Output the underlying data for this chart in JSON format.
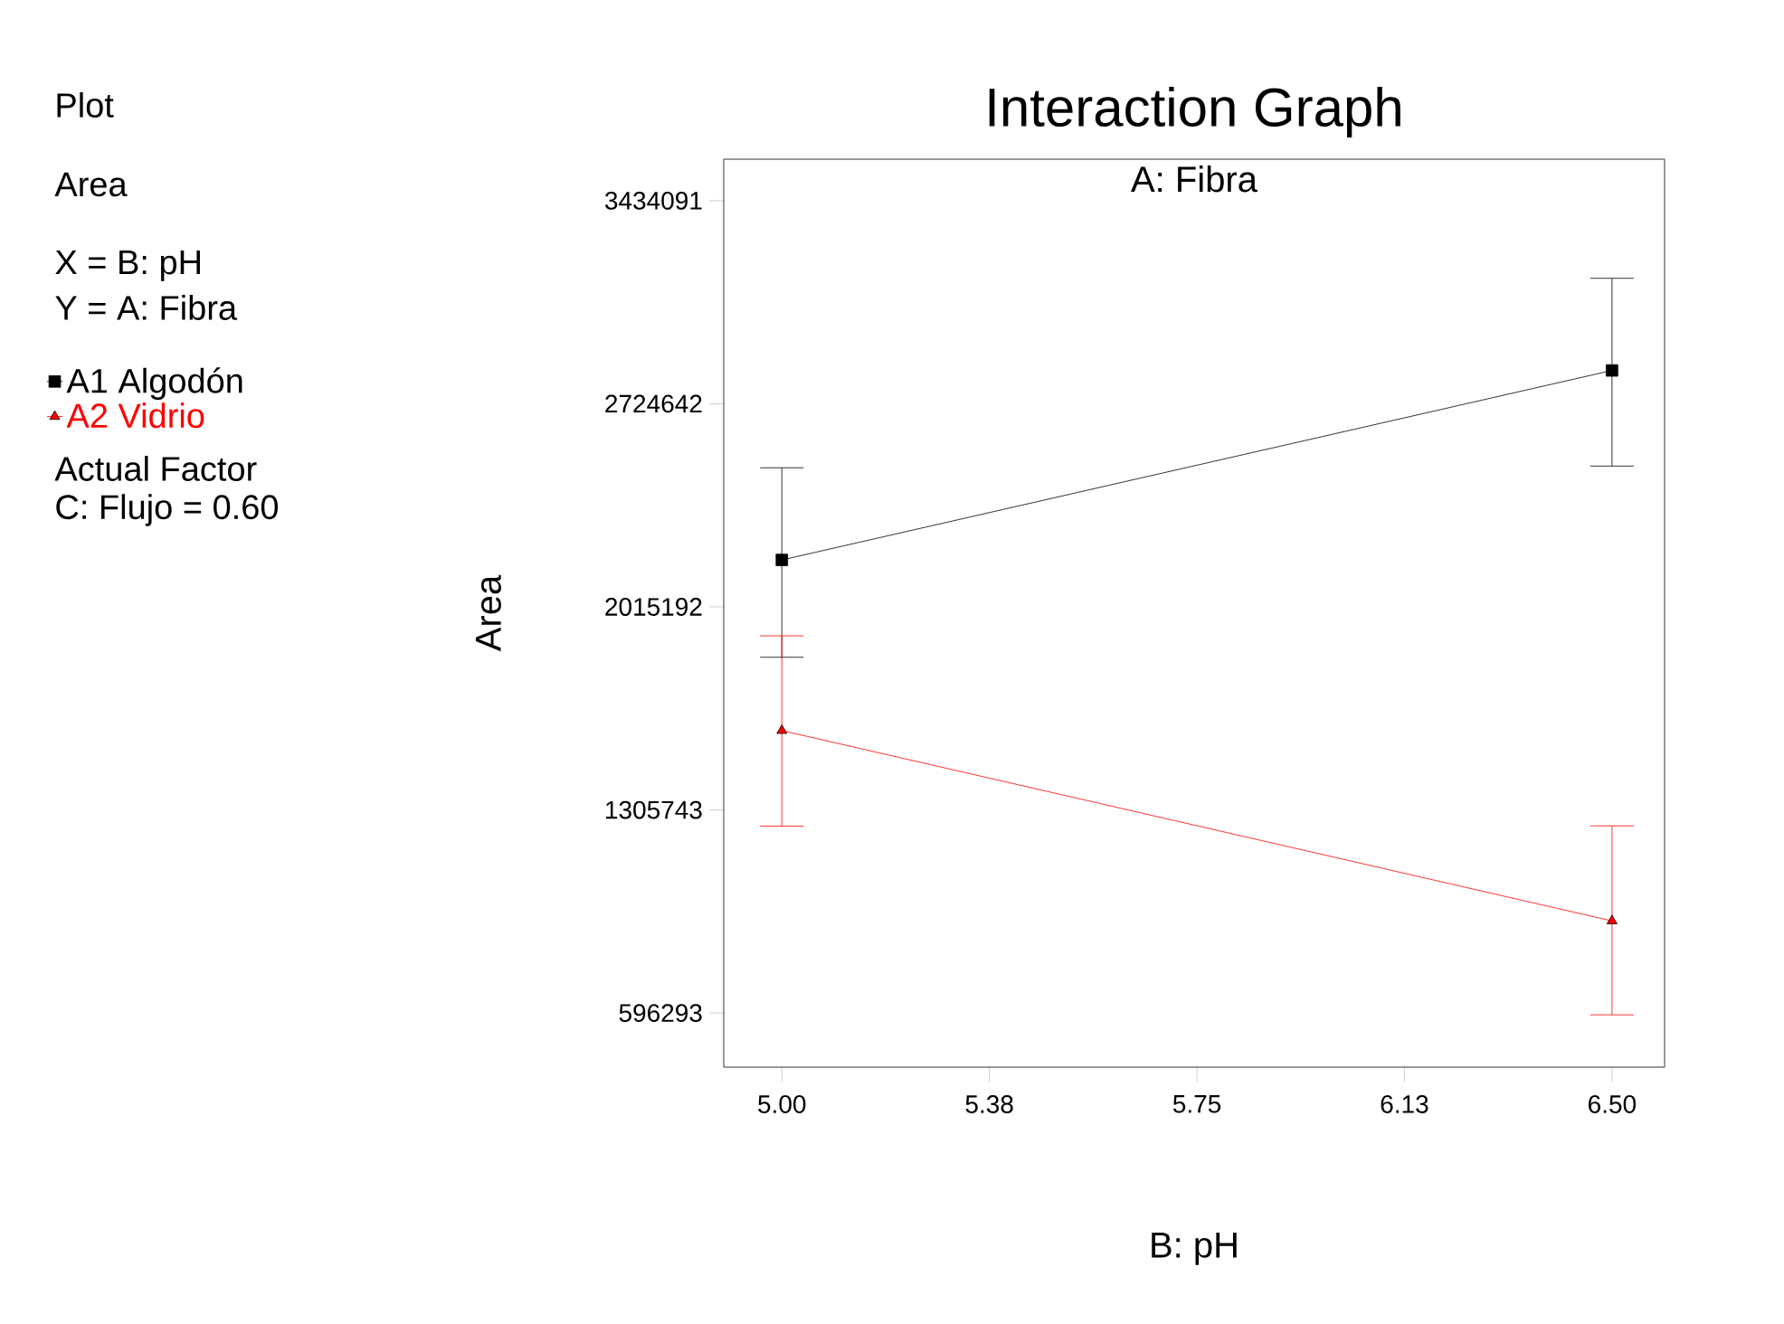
{
  "chart_data": {
    "type": "line",
    "title": "Interaction Graph",
    "subtitle": "A: Fibra",
    "xlabel": "B: pH",
    "ylabel": "Area",
    "annotations": [
      "Plot",
      "Area",
      "X = B: pH",
      "Y = A: Fibra",
      "Actual Factor",
      "C: Flujo = 0.60"
    ],
    "x": [
      5.0,
      6.5
    ],
    "xlim": [
      4.895,
      6.595
    ],
    "ylim": [
      407100,
      3579100
    ],
    "xticks": [
      {
        "value": 5.0,
        "label": "5.00"
      },
      {
        "value": 5.375,
        "label": "5.38"
      },
      {
        "value": 5.75,
        "label": "5.75"
      },
      {
        "value": 6.125,
        "label": "6.13"
      },
      {
        "value": 6.5,
        "label": "6.50"
      }
    ],
    "yticks": [
      596293,
      1305743,
      2015192,
      2724642,
      3434091
    ],
    "grid": false,
    "legend": "left",
    "line_style": "solid",
    "series": [
      {
        "name": "A1 Algodón",
        "color": "#000000",
        "marker": "square",
        "values": [
          2179000,
          2841000
        ],
        "errors": [
          [
            1839000,
            2501000
          ],
          [
            2507000,
            3163000
          ]
        ]
      },
      {
        "name": "A2 Vidrio",
        "color": "#ff0000",
        "marker": "triangle",
        "values": [
          1583000,
          918000
        ],
        "errors": [
          [
            1249000,
            1914000
          ],
          [
            590000,
            1250000
          ]
        ]
      }
    ]
  }
}
